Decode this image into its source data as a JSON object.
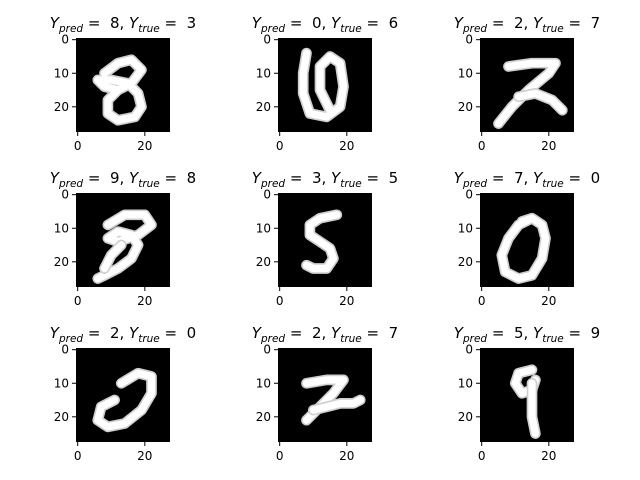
{
  "figure": {
    "background": "#ffffff",
    "image_background": "#000000",
    "digit_color": "#ffffff"
  },
  "chart_data": {
    "type": "heatmap",
    "layout": {
      "rows": 3,
      "cols": 3
    },
    "image_size": [
      28,
      28
    ],
    "colormap": "gray",
    "grid": false,
    "x_ticks": [
      0,
      20
    ],
    "y_ticks": [
      0,
      10,
      20
    ],
    "panels": [
      {
        "title_prefix": "Y",
        "pred_sub": "pred",
        "true_sub": "true",
        "eq": " =  ",
        "sep": ", ",
        "pred": "8",
        "true": "3",
        "strokes": [
          [
            [
              8,
              10
            ],
            [
              12,
              7
            ],
            [
              16,
              6
            ],
            [
              19,
              9
            ],
            [
              16,
              13
            ],
            [
              12,
              15
            ],
            [
              8,
              14
            ],
            [
              6,
              12
            ],
            [
              10,
              12
            ],
            [
              15,
              13
            ],
            [
              18,
              16
            ],
            [
              19,
              20
            ],
            [
              17,
              23
            ],
            [
              12,
              24
            ],
            [
              9,
              22
            ],
            [
              9,
              18
            ],
            [
              12,
              15
            ]
          ]
        ]
      },
      {
        "title_prefix": "Y",
        "pred_sub": "pred",
        "true_sub": "true",
        "eq": " =  ",
        "sep": ", ",
        "pred": "0",
        "true": "6",
        "strokes": [
          [
            [
              8,
              4
            ],
            [
              7,
              10
            ],
            [
              7,
              16
            ],
            [
              9,
              22
            ],
            [
              14,
              23
            ],
            [
              18,
              20
            ],
            [
              19,
              14
            ],
            [
              18,
              7
            ],
            [
              15,
              5
            ],
            [
              12,
              8
            ],
            [
              12,
              15
            ],
            [
              15,
              21
            ]
          ]
        ]
      },
      {
        "title_prefix": "Y",
        "pred_sub": "pred",
        "true_sub": "true",
        "eq": " =  ",
        "sep": ", ",
        "pred": "2",
        "true": "7",
        "strokes": [
          [
            [
              8,
              8
            ],
            [
              15,
              7
            ],
            [
              22,
              7
            ],
            [
              20,
              10
            ],
            [
              14,
              15
            ],
            [
              9,
              20
            ],
            [
              5,
              25
            ]
          ],
          [
            [
              11,
              17
            ],
            [
              16,
              16
            ],
            [
              21,
              18
            ],
            [
              24,
              21
            ]
          ]
        ]
      },
      {
        "title_prefix": "Y",
        "pred_sub": "pred",
        "true_sub": "true",
        "eq": " =  ",
        "sep": ", ",
        "pred": "9",
        "true": "8",
        "strokes": [
          [
            [
              9,
              9
            ],
            [
              14,
              6
            ],
            [
              20,
              6
            ],
            [
              22,
              9
            ],
            [
              18,
              12
            ],
            [
              12,
              14
            ],
            [
              9,
              13
            ],
            [
              12,
              11
            ],
            [
              16,
              12
            ],
            [
              18,
              15
            ],
            [
              16,
              19
            ],
            [
              12,
              22
            ],
            [
              8,
              24
            ],
            [
              6,
              25
            ]
          ],
          [
            [
              13,
              15
            ],
            [
              10,
              18
            ],
            [
              8,
              22
            ]
          ]
        ]
      },
      {
        "title_prefix": "Y",
        "pred_sub": "pred",
        "true_sub": "true",
        "eq": " =  ",
        "sep": ", ",
        "pred": "3",
        "true": "5",
        "strokes": [
          [
            [
              17,
              6
            ],
            [
              12,
              7
            ],
            [
              9,
              9
            ],
            [
              9,
              12
            ],
            [
              12,
              14
            ],
            [
              15,
              16
            ],
            [
              16,
              19
            ],
            [
              14,
              22
            ],
            [
              10,
              22
            ],
            [
              8,
              21
            ]
          ]
        ]
      },
      {
        "title_prefix": "Y",
        "pred_sub": "pred",
        "true_sub": "true",
        "eq": " =  ",
        "sep": ", ",
        "pred": "7",
        "true": "0",
        "strokes": [
          [
            [
              15,
              7
            ],
            [
              11,
              9
            ],
            [
              8,
              13
            ],
            [
              6,
              18
            ],
            [
              7,
              23
            ],
            [
              11,
              25
            ],
            [
              15,
              24
            ],
            [
              18,
              19
            ],
            [
              19,
              13
            ],
            [
              18,
              9
            ],
            [
              15,
              7
            ],
            [
              12,
              8
            ]
          ]
        ]
      },
      {
        "title_prefix": "Y",
        "pred_sub": "pred",
        "true_sub": "true",
        "eq": " =  ",
        "sep": ", ",
        "pred": "2",
        "true": "0",
        "strokes": [
          [
            [
              13,
              10
            ],
            [
              18,
              7
            ],
            [
              22,
              8
            ],
            [
              22,
              13
            ],
            [
              19,
              18
            ],
            [
              14,
              22
            ],
            [
              9,
              23
            ],
            [
              6,
              21
            ],
            [
              7,
              17
            ],
            [
              11,
              15
            ]
          ]
        ]
      },
      {
        "title_prefix": "Y",
        "pred_sub": "pred",
        "true_sub": "true",
        "eq": " =  ",
        "sep": ", ",
        "pred": "2",
        "true": "7",
        "strokes": [
          [
            [
              8,
              10
            ],
            [
              14,
              9
            ],
            [
              19,
              9
            ],
            [
              16,
              13
            ],
            [
              11,
              18
            ],
            [
              8,
              21
            ]
          ],
          [
            [
              10,
              18
            ],
            [
              14,
              17
            ],
            [
              18,
              16
            ],
            [
              22,
              16
            ],
            [
              24,
              15
            ]
          ]
        ]
      },
      {
        "title_prefix": "Y",
        "pred_sub": "pred",
        "true_sub": "true",
        "eq": " =  ",
        "sep": ", ",
        "pred": "5",
        "true": "9",
        "strokes": [
          [
            [
              15,
              6
            ],
            [
              11,
              7
            ],
            [
              10,
              10
            ],
            [
              12,
              13
            ],
            [
              15,
              12
            ],
            [
              16,
              9
            ]
          ],
          [
            [
              15,
              10
            ],
            [
              15,
              15
            ],
            [
              15,
              20
            ],
            [
              16,
              25
            ]
          ]
        ]
      }
    ]
  }
}
